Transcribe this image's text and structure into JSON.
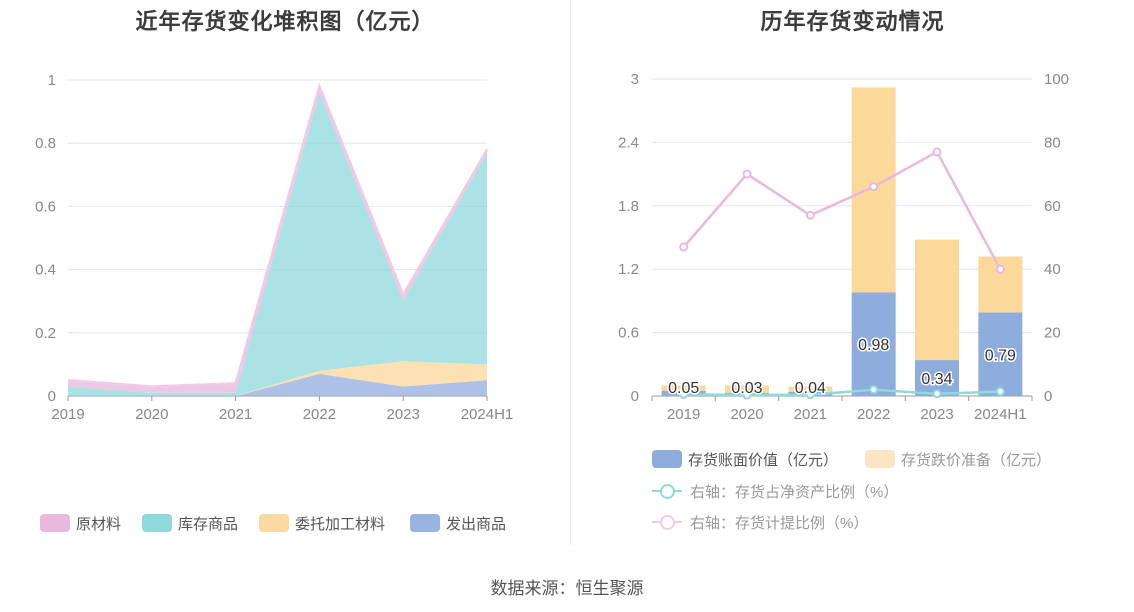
{
  "source": "数据来源：恒生聚源",
  "colors": {
    "raw_materials": "#e8b9dd",
    "finished_goods": "#8fd8dc",
    "consigned_processing": "#fcd9a0",
    "goods_shipped": "#98b3e0",
    "book_value": "#8eacdc",
    "impairment": "#fdd89b",
    "ratio_net_assets": "#8fd8dc",
    "provision_ratio": "#e8b9dd",
    "grid": "#e0e4f0",
    "axis_text": "#888888"
  },
  "chart_data": [
    {
      "type": "area",
      "stacked": true,
      "title": "近年存货变化堆积图（亿元）",
      "x": [
        "2019",
        "2020",
        "2021",
        "2022",
        "2023",
        "2024H1"
      ],
      "ylim": [
        0,
        1
      ],
      "yticks": [
        "0",
        "0.2",
        "0.4",
        "0.6",
        "0.8",
        "1"
      ],
      "grid": true,
      "legend_position": "bottom",
      "series": [
        {
          "name": "原材料",
          "values": [
            0.02,
            0.02,
            0.03,
            0.02,
            0.02,
            0.01
          ]
        },
        {
          "name": "库存商品",
          "values": [
            0.03,
            0.01,
            0.01,
            0.88,
            0.19,
            0.67
          ]
        },
        {
          "name": "委托加工材料",
          "values": [
            0.0,
            0.0,
            0.0,
            0.01,
            0.08,
            0.05
          ]
        },
        {
          "name": "发出商品",
          "values": [
            0.0,
            0.0,
            0.0,
            0.07,
            0.03,
            0.05
          ]
        }
      ]
    },
    {
      "type": "bar",
      "stacked": true,
      "title": "历年存货变动情况",
      "categories": [
        "2019",
        "2020",
        "2021",
        "2022",
        "2023",
        "2024H1"
      ],
      "ylim": [
        0,
        3
      ],
      "yticks": [
        "0",
        "0.6",
        "1.2",
        "1.8",
        "2.4",
        "3"
      ],
      "y2lim": [
        0,
        100
      ],
      "y2ticks": [
        "0",
        "20",
        "40",
        "60",
        "80",
        "100"
      ],
      "grid": true,
      "legend_position": "bottom",
      "bar_labels": [
        "0.05",
        "0.03",
        "0.04",
        "0.98",
        "0.34",
        "0.79"
      ],
      "series": [
        {
          "name": "存货账面价值（亿元）",
          "kind": "bar",
          "axis": "left",
          "values": [
            0.05,
            0.03,
            0.04,
            0.98,
            0.34,
            0.79
          ]
        },
        {
          "name": "存货跌价准备（亿元）",
          "kind": "bar",
          "axis": "left",
          "values": [
            0.05,
            0.07,
            0.05,
            1.94,
            1.14,
            0.53
          ]
        },
        {
          "name": "右轴：存货占净资产比例（%）",
          "kind": "line",
          "axis": "right",
          "values": [
            0.5,
            0.3,
            0.4,
            2.0,
            0.7,
            1.4
          ]
        },
        {
          "name": "右轴：存货计提比例（%）",
          "kind": "line",
          "axis": "right",
          "values": [
            47,
            70,
            57,
            66,
            77,
            40
          ]
        }
      ]
    }
  ]
}
